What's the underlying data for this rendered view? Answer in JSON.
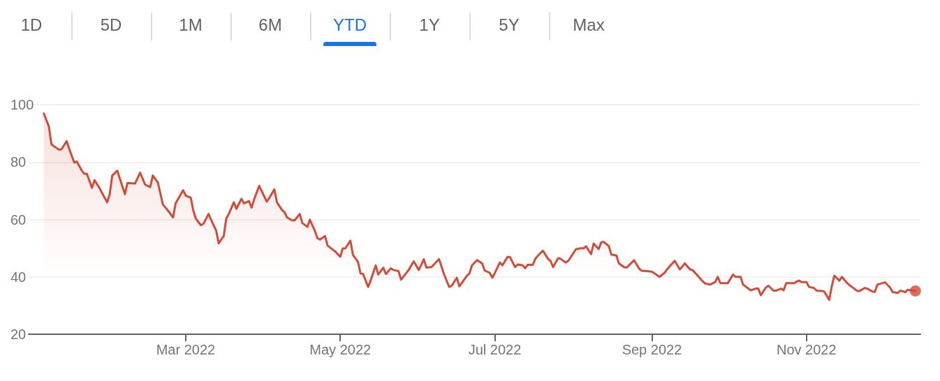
{
  "chart_data": {
    "type": "area",
    "annotations": [
      "1D",
      "5D",
      "1M",
      "6M",
      "YTD",
      "1Y",
      "5Y",
      "Max"
    ],
    "xlim": [
      "2021-12-29",
      "2022-12-16"
    ],
    "xticks": [
      {
        "value": "2022-03-01",
        "label": "Mar 2022"
      },
      {
        "value": "2022-05-01",
        "label": "May 2022"
      },
      {
        "value": "2022-07-01",
        "label": "Jul 2022"
      },
      {
        "value": "2022-09-01",
        "label": "Sep 2022"
      },
      {
        "value": "2022-11-01",
        "label": "Nov 2022"
      }
    ],
    "ylim": [
      20,
      100
    ],
    "yticks": [
      20,
      40,
      60,
      80,
      100
    ],
    "grid": "y",
    "series": [
      {
        "color": "#d24b37",
        "marker": "none",
        "line_style": "solid",
        "x": [
          "2022-01-04",
          "2022-01-06",
          "2022-01-07",
          "2022-01-08",
          "2022-01-10",
          "2022-01-11",
          "2022-01-13",
          "2022-01-14",
          "2022-01-16",
          "2022-01-17",
          "2022-01-19",
          "2022-01-20",
          "2022-01-21",
          "2022-01-23",
          "2022-01-24",
          "2022-01-26",
          "2022-01-27",
          "2022-01-29",
          "2022-01-30",
          "2022-01-31",
          "2022-02-02",
          "2022-02-05",
          "2022-02-06",
          "2022-02-09",
          "2022-02-11",
          "2022-02-13",
          "2022-02-15",
          "2022-02-16",
          "2022-02-18",
          "2022-02-20",
          "2022-02-22",
          "2022-02-24",
          "2022-02-25",
          "2022-02-28",
          "2022-03-01",
          "2022-03-03",
          "2022-03-04",
          "2022-03-05",
          "2022-03-07",
          "2022-03-08",
          "2022-03-10",
          "2022-03-11",
          "2022-03-13",
          "2022-03-14",
          "2022-03-16",
          "2022-03-17",
          "2022-03-18",
          "2022-03-20",
          "2022-03-21",
          "2022-03-23",
          "2022-03-24",
          "2022-03-26",
          "2022-03-27",
          "2022-03-28",
          "2022-03-30",
          "2022-04-02",
          "2022-04-03",
          "2022-04-05",
          "2022-04-06",
          "2022-04-08",
          "2022-04-09",
          "2022-04-10",
          "2022-04-12",
          "2022-04-13",
          "2022-04-15",
          "2022-04-16",
          "2022-04-18",
          "2022-04-19",
          "2022-04-21",
          "2022-04-22",
          "2022-04-23",
          "2022-04-25",
          "2022-04-26",
          "2022-04-28",
          "2022-04-29",
          "2022-05-01",
          "2022-05-02",
          "2022-05-03",
          "2022-05-05",
          "2022-05-06",
          "2022-05-08",
          "2022-05-09",
          "2022-05-10",
          "2022-05-12",
          "2022-05-13",
          "2022-05-15",
          "2022-05-16",
          "2022-05-18",
          "2022-05-19",
          "2022-05-21",
          "2022-05-22",
          "2022-05-24",
          "2022-05-25",
          "2022-05-28",
          "2022-05-30",
          "2022-06-01",
          "2022-06-03",
          "2022-06-04",
          "2022-06-06",
          "2022-06-09",
          "2022-06-11",
          "2022-06-13",
          "2022-06-14",
          "2022-06-16",
          "2022-06-17",
          "2022-06-20",
          "2022-06-21",
          "2022-06-22",
          "2022-06-24",
          "2022-06-26",
          "2022-06-27",
          "2022-06-29",
          "2022-06-30",
          "2022-07-01",
          "2022-07-03",
          "2022-07-04",
          "2022-07-06",
          "2022-07-07",
          "2022-07-09",
          "2022-07-10",
          "2022-07-12",
          "2022-07-13",
          "2022-07-14",
          "2022-07-16",
          "2022-07-17",
          "2022-07-19",
          "2022-07-20",
          "2022-07-22",
          "2022-07-23",
          "2022-07-24",
          "2022-07-26",
          "2022-07-27",
          "2022-07-29",
          "2022-07-30",
          "2022-07-31",
          "2022-08-02",
          "2022-08-04",
          "2022-08-05",
          "2022-08-06",
          "2022-08-08",
          "2022-08-09",
          "2022-08-11",
          "2022-08-12",
          "2022-08-13",
          "2022-08-15",
          "2022-08-16",
          "2022-08-18",
          "2022-08-19",
          "2022-08-21",
          "2022-08-22",
          "2022-08-25",
          "2022-08-27",
          "2022-08-28",
          "2022-08-30",
          "2022-09-01",
          "2022-09-03",
          "2022-09-04",
          "2022-09-06",
          "2022-09-07",
          "2022-09-09",
          "2022-09-10",
          "2022-09-12",
          "2022-09-13",
          "2022-09-14",
          "2022-09-16",
          "2022-09-17",
          "2022-09-19",
          "2022-09-21",
          "2022-09-22",
          "2022-09-24",
          "2022-09-26",
          "2022-09-27",
          "2022-09-28",
          "2022-10-01",
          "2022-10-03",
          "2022-10-04",
          "2022-10-06",
          "2022-10-07",
          "2022-10-09",
          "2022-10-10",
          "2022-10-12",
          "2022-10-13",
          "2022-10-14",
          "2022-10-16",
          "2022-10-17",
          "2022-10-19",
          "2022-10-20",
          "2022-10-22",
          "2022-10-23",
          "2022-10-24",
          "2022-10-27",
          "2022-10-29",
          "2022-10-30",
          "2022-11-01",
          "2022-11-02",
          "2022-11-04",
          "2022-11-05",
          "2022-11-07",
          "2022-11-08",
          "2022-11-10",
          "2022-11-11",
          "2022-11-12",
          "2022-11-14",
          "2022-11-15",
          "2022-11-17",
          "2022-11-18",
          "2022-11-19",
          "2022-11-21",
          "2022-11-22",
          "2022-11-24",
          "2022-11-25",
          "2022-11-27",
          "2022-11-28",
          "2022-11-29",
          "2022-12-02",
          "2022-12-04",
          "2022-12-05",
          "2022-12-07",
          "2022-12-08",
          "2022-12-10",
          "2022-12-11",
          "2022-12-14"
        ],
        "values": [
          96.9,
          92.4,
          86.2,
          85.5,
          84.3,
          84.5,
          87.3,
          84.7,
          79.8,
          80.2,
          77.0,
          75.9,
          75.9,
          71.0,
          73.7,
          70.9,
          69.2,
          66.0,
          68.8,
          75.3,
          77.0,
          68.8,
          72.7,
          72.5,
          76.3,
          72.1,
          71.3,
          75.3,
          72.9,
          65.2,
          63.1,
          60.7,
          65.6,
          70.2,
          68.3,
          67.6,
          63.1,
          60.3,
          58.0,
          58.5,
          61.9,
          59.9,
          56.2,
          51.7,
          54.2,
          60.3,
          61.9,
          66.0,
          63.7,
          67.2,
          65.6,
          66.4,
          64.1,
          67.0,
          71.7,
          66.2,
          67.5,
          70.5,
          66.0,
          63.3,
          62.5,
          60.7,
          59.7,
          59.7,
          61.9,
          58.8,
          57.4,
          59.9,
          56.0,
          53.5,
          53.0,
          54.2,
          50.9,
          49.5,
          48.9,
          47.0,
          49.9,
          49.9,
          52.6,
          47.7,
          45.2,
          41.2,
          41.0,
          36.5,
          38.7,
          44.0,
          40.8,
          43.2,
          41.0,
          43.0,
          42.4,
          42.0,
          39.0,
          42.4,
          45.4,
          42.4,
          46.1,
          43.2,
          43.4,
          46.2,
          40.8,
          36.5,
          36.9,
          39.7,
          36.7,
          40.4,
          41.2,
          44.0,
          45.8,
          44.7,
          42.2,
          41.4,
          39.7,
          41.3,
          45.0,
          44.0,
          46.9,
          46.9,
          43.4,
          44.3,
          44.0,
          43.0,
          44.2,
          44.2,
          46.3,
          48.3,
          49.1,
          46.3,
          45.6,
          43.4,
          46.5,
          46.3,
          45.0,
          45.6,
          46.9,
          49.6,
          50.0,
          49.9,
          50.7,
          47.9,
          51.6,
          49.7,
          52.0,
          52.2,
          50.7,
          47.8,
          47.4,
          44.7,
          43.4,
          43.2,
          45.8,
          42.8,
          42.1,
          42.0,
          41.8,
          40.6,
          40.0,
          41.4,
          42.6,
          44.6,
          45.6,
          42.6,
          43.6,
          44.7,
          42.6,
          42.4,
          40.5,
          38.5,
          37.7,
          37.3,
          38.2,
          40.0,
          37.8,
          37.8,
          40.8,
          40.0,
          40.0,
          37.3,
          36.0,
          35.3,
          35.9,
          35.9,
          33.6,
          36.3,
          36.9,
          35.2,
          35.2,
          35.9,
          35.3,
          37.8,
          37.8,
          38.7,
          38.2,
          38.2,
          36.5,
          36.1,
          35.2,
          35.1,
          34.9,
          32.0,
          36.7,
          40.4,
          38.7,
          40.0,
          37.9,
          37.1,
          36.5,
          35.1,
          35.1,
          36.1,
          35.9,
          34.9,
          34.8,
          37.3,
          38.1,
          36.3,
          34.7,
          34.4,
          35.2,
          34.7,
          35.5,
          35.1
        ]
      },
      {
        "type": "scatter",
        "color": "#d24b37",
        "marker": "circle",
        "x": [
          "2022-12-14"
        ],
        "values": [
          35.1
        ]
      }
    ]
  }
}
